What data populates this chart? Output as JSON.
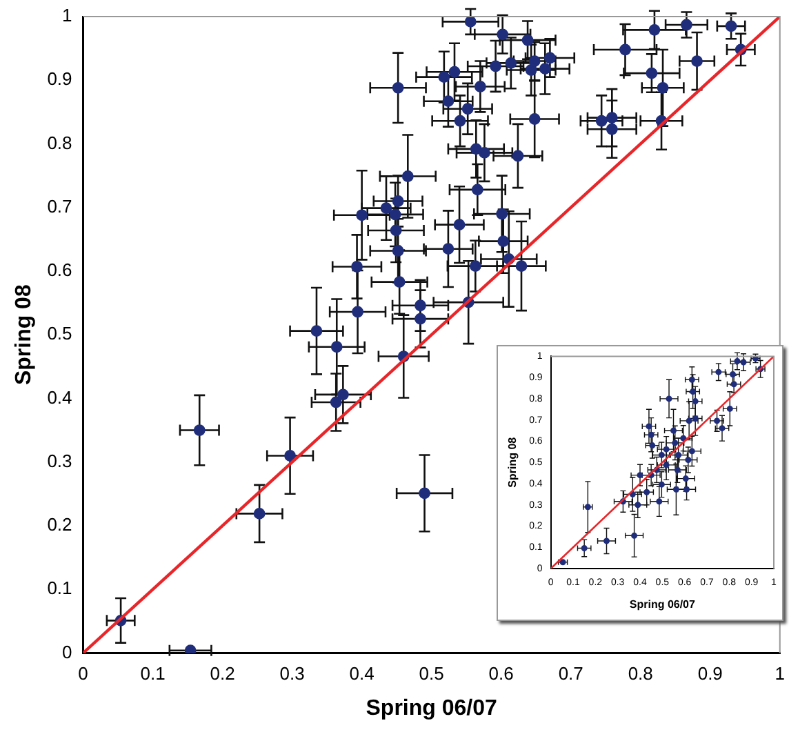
{
  "chart_data": [
    {
      "type": "scatter",
      "xlabel": "Spring 06/07",
      "ylabel": "Spring 08",
      "xlim": [
        0,
        1
      ],
      "ylim": [
        0,
        1
      ],
      "xticks": [
        0,
        0.1,
        0.2,
        0.3,
        0.4,
        0.5,
        0.6,
        0.7,
        0.8,
        0.9,
        1
      ],
      "yticks": [
        0,
        0.1,
        0.2,
        0.3,
        0.4,
        0.5,
        0.6,
        0.7,
        0.8,
        0.9,
        1
      ],
      "grid": false,
      "legend": false,
      "marker": "circle",
      "series": [
        {
          "type": "scatter",
          "color": "#1f2d7b",
          "x": [
            0.054,
            0.154,
            0.167,
            0.253,
            0.297,
            0.49,
            0.363,
            0.373,
            0.364,
            0.335,
            0.394,
            0.46,
            0.484,
            0.484,
            0.553,
            0.454,
            0.556,
            0.602,
            0.452,
            0.533,
            0.518,
            0.57,
            0.592,
            0.614,
            0.524,
            0.552,
            0.541,
            0.564,
            0.576,
            0.466,
            0.452,
            0.435,
            0.4,
            0.448,
            0.449,
            0.566,
            0.601,
            0.54,
            0.603,
            0.524,
            0.452,
            0.611,
            0.563,
            0.393,
            0.638,
            0.643,
            0.663,
            0.67,
            0.648,
            0.648,
            0.624,
            0.629,
            0.82,
            0.866,
            0.93,
            0.778,
            0.881,
            0.944,
            0.816,
            0.832,
            0.744,
            0.759,
            0.759,
            0.83
          ],
          "values": [
            0.051,
            0.004,
            0.35,
            0.219,
            0.31,
            0.251,
            0.394,
            0.406,
            0.481,
            0.506,
            0.536,
            0.466,
            0.525,
            0.546,
            0.551,
            0.583,
            0.992,
            0.972,
            0.888,
            0.913,
            0.905,
            0.89,
            0.922,
            0.927,
            0.867,
            0.855,
            0.836,
            0.792,
            0.786,
            0.749,
            0.71,
            0.699,
            0.688,
            0.689,
            0.664,
            0.728,
            0.69,
            0.673,
            0.647,
            0.635,
            0.632,
            0.619,
            0.608,
            0.607,
            0.963,
            0.916,
            0.918,
            0.935,
            0.93,
            0.839,
            0.781,
            0.608,
            0.979,
            0.987,
            0.985,
            0.948,
            0.93,
            0.948,
            0.911,
            0.888,
            0.836,
            0.841,
            0.823,
            0.836
          ],
          "xerrors": [
            0.02,
            0.03,
            0.028,
            0.033,
            0.033,
            0.04,
            0.035,
            0.04,
            0.04,
            0.038,
            0.04,
            0.036,
            0.04,
            0.04,
            0.05,
            0.04,
            0.04,
            0.04,
            0.04,
            0.04,
            0.04,
            0.035,
            0.04,
            0.035,
            0.035,
            0.035,
            0.04,
            0.04,
            0.04,
            0.04,
            0.035,
            0.035,
            0.04,
            0.04,
            0.04,
            0.04,
            0.04,
            0.035,
            0.035,
            0.035,
            0.04,
            0.04,
            0.04,
            0.035,
            0.04,
            0.035,
            0.035,
            0.035,
            0.03,
            0.035,
            0.035,
            0.035,
            0.045,
            0.03,
            0.02,
            0.045,
            0.025,
            0.02,
            0.04,
            0.03,
            0.03,
            0.035,
            0.035,
            0.03
          ],
          "errors": [
            0.035,
            null,
            0.055,
            0.045,
            0.06,
            0.06,
            0.045,
            0.045,
            0.075,
            0.068,
            0.065,
            0.065,
            0.045,
            0.04,
            0.065,
            0.05,
            0.02,
            0.03,
            0.055,
            0.045,
            0.04,
            0.04,
            0.04,
            0.04,
            0.04,
            0.04,
            0.04,
            0.045,
            0.045,
            0.065,
            0.04,
            0.05,
            0.07,
            0.05,
            0.05,
            0.04,
            0.06,
            0.06,
            0.05,
            0.06,
            0.05,
            0.075,
            0.04,
            0.05,
            0.03,
            0.04,
            0.04,
            0.03,
            0.03,
            0.06,
            0.05,
            0.07,
            0.03,
            0.02,
            0.02,
            0.04,
            0.045,
            0.025,
            0.03,
            0.06,
            0.04,
            0.045,
            0.045,
            0.045
          ]
        },
        {
          "type": "line",
          "color": "#e8262a",
          "x": [
            0,
            1
          ],
          "values": [
            0,
            1
          ],
          "marker": "none"
        }
      ]
    },
    {
      "type": "scatter",
      "xlabel": "Spring 06/07",
      "ylabel": "Spring 08",
      "xlim": [
        0,
        1
      ],
      "ylim": [
        0,
        1
      ],
      "xticks": [
        0,
        0.1,
        0.2,
        0.3,
        0.4,
        0.5,
        0.6,
        0.7,
        0.8,
        0.9,
        1
      ],
      "yticks": [
        0,
        0.1,
        0.2,
        0.3,
        0.4,
        0.5,
        0.6,
        0.7,
        0.8,
        0.9,
        1
      ],
      "grid": false,
      "legend": false,
      "marker": "circle",
      "series": [
        {
          "type": "scatter",
          "color": "#1f2d7b",
          "x": [
            0.054,
            0.15,
            0.166,
            0.25,
            0.374,
            0.324,
            0.39,
            0.367,
            0.43,
            0.45,
            0.4,
            0.44,
            0.45,
            0.455,
            0.486,
            0.497,
            0.518,
            0.53,
            0.518,
            0.55,
            0.557,
            0.572,
            0.568,
            0.562,
            0.594,
            0.605,
            0.609,
            0.62,
            0.633,
            0.637,
            0.648,
            0.648,
            0.633,
            0.616,
            0.745,
            0.768,
            0.752,
            0.803,
            0.816,
            0.821,
            0.836,
            0.864,
            0.918,
            0.94,
            0.497,
            0.475
          ],
          "values": [
            0.03,
            0.096,
            0.29,
            0.13,
            0.155,
            0.316,
            0.3,
            0.35,
            0.36,
            0.44,
            0.44,
            0.67,
            0.63,
            0.58,
            0.316,
            0.396,
            0.488,
            0.8,
            0.562,
            0.65,
            0.592,
            0.535,
            0.465,
            0.373,
            0.614,
            0.424,
            0.373,
            0.696,
            0.89,
            0.834,
            0.788,
            0.707,
            0.553,
            0.512,
            0.696,
            0.661,
            0.926,
            0.753,
            0.915,
            0.869,
            0.977,
            0.972,
            0.99,
            0.94,
            0.535,
            0.465
          ],
          "xerrors": [
            0.02,
            0.03,
            0.02,
            0.04,
            0.04,
            0.04,
            0.04,
            0.04,
            0.03,
            0.04,
            0.04,
            0.03,
            0.03,
            0.03,
            0.04,
            0.04,
            0.04,
            0.04,
            0.04,
            0.04,
            0.04,
            0.04,
            0.04,
            0.04,
            0.04,
            0.04,
            0.04,
            0.04,
            0.03,
            0.03,
            0.03,
            0.03,
            0.04,
            0.04,
            0.03,
            0.03,
            0.03,
            0.03,
            0.03,
            0.03,
            0.03,
            0.03,
            0.02,
            0.02,
            0.04,
            0.04
          ],
          "errors": [
            null,
            0.04,
            0.12,
            0.06,
            0.1,
            0.05,
            0.06,
            0.08,
            0.06,
            0.05,
            0.05,
            0.08,
            0.08,
            0.06,
            0.07,
            0.06,
            0.07,
            0.09,
            0.06,
            0.1,
            0.08,
            0.08,
            0.06,
            0.12,
            0.06,
            0.06,
            0.05,
            0.09,
            0.06,
            0.08,
            0.07,
            0.08,
            0.07,
            0.06,
            0.05,
            0.06,
            0.04,
            0.08,
            0.05,
            0.04,
            0.04,
            0.04,
            0.02,
            0.04,
            0.06,
            0.06
          ]
        },
        {
          "type": "line",
          "color": "#e8262a",
          "x": [
            0,
            1
          ],
          "values": [
            0,
            1
          ],
          "marker": "none"
        }
      ]
    }
  ]
}
